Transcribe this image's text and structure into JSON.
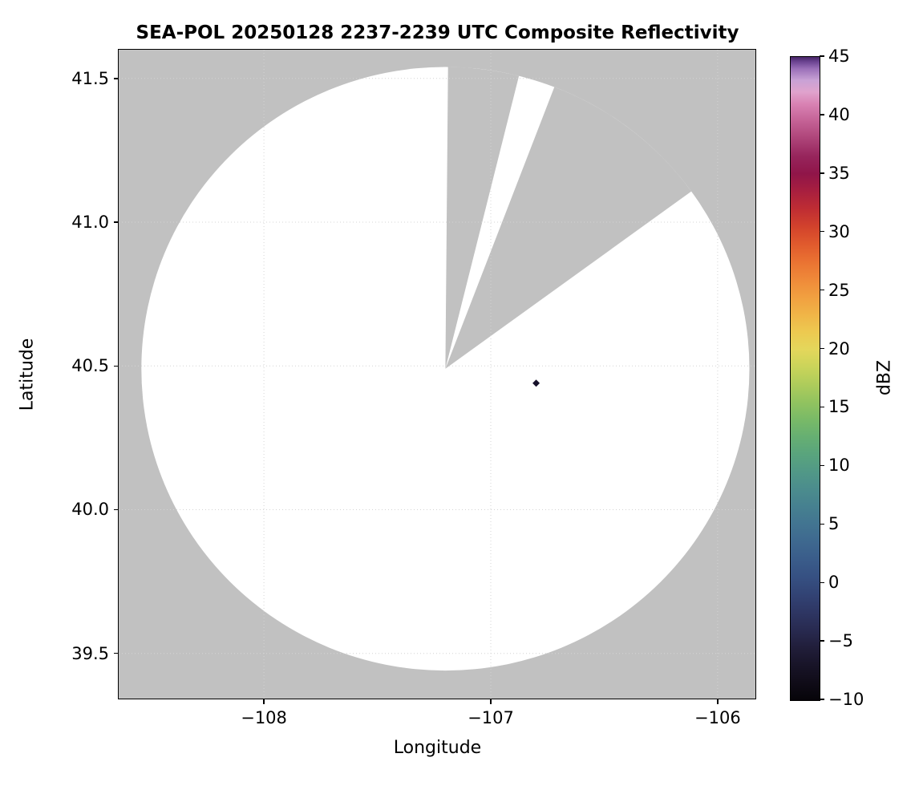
{
  "chart_data": {
    "type": "heatmap",
    "title": "SEA-POL 20250128 2237-2239 UTC Composite Reflectivity",
    "xlabel": "Longitude",
    "ylabel": "Latitude",
    "xlim": [
      -108.64,
      -105.83
    ],
    "ylim": [
      39.34,
      41.6
    ],
    "xticks": [
      -108,
      -107,
      -106
    ],
    "yticks": [
      39.5,
      40.0,
      40.5,
      41.0,
      41.5
    ],
    "xtick_labels": [
      "−108",
      "−107",
      "−106"
    ],
    "ytick_labels": [
      "39.5",
      "40.0",
      "40.5",
      "41.0",
      "41.5"
    ],
    "grid": "faint dotted gridlines at each tick",
    "no_data_color": "#c1c1c1",
    "coverage_color": "#ffffff",
    "grid_color": "#d4d4d4",
    "radar": {
      "center_lon": -107.2,
      "center_lat": 40.49,
      "radius_lon_deg": 1.34,
      "radius_lat_deg": 1.05,
      "blocked_sectors_deg_from_north": [
        [
          0.5,
          14
        ],
        [
          21,
          54
        ]
      ]
    },
    "echoes": [
      {
        "lon": -106.8,
        "lat": 40.44,
        "appearance": "small near-black diamond (extreme end of colormap)",
        "color": "#16102a"
      }
    ],
    "colorbar": {
      "label": "dBZ",
      "min": -10,
      "max": 45,
      "ticks": [
        45,
        40,
        35,
        30,
        25,
        20,
        15,
        10,
        5,
        0,
        -5,
        -10
      ],
      "tick_labels": [
        "45",
        "40",
        "35",
        "30",
        "25",
        "20",
        "15",
        "10",
        "5",
        "0",
        "−5",
        "−10"
      ],
      "stops": [
        {
          "v": -10,
          "c": "#060409"
        },
        {
          "v": -8.5,
          "c": "#100c18"
        },
        {
          "v": -7,
          "c": "#181428"
        },
        {
          "v": -5.5,
          "c": "#211e3a"
        },
        {
          "v": -4,
          "c": "#282a50"
        },
        {
          "v": -2.5,
          "c": "#2e3663"
        },
        {
          "v": -1,
          "c": "#324374"
        },
        {
          "v": 0.5,
          "c": "#365082"
        },
        {
          "v": 2,
          "c": "#3a5c8a"
        },
        {
          "v": 3.5,
          "c": "#3e688f"
        },
        {
          "v": 5,
          "c": "#427491"
        },
        {
          "v": 6.5,
          "c": "#468090"
        },
        {
          "v": 8,
          "c": "#4b8c8d"
        },
        {
          "v": 9.5,
          "c": "#519887"
        },
        {
          "v": 11,
          "c": "#59a47d"
        },
        {
          "v": 12.5,
          "c": "#66af72"
        },
        {
          "v": 14,
          "c": "#79ba67"
        },
        {
          "v": 15.5,
          "c": "#92c35f"
        },
        {
          "v": 17,
          "c": "#aecc5b"
        },
        {
          "v": 18.5,
          "c": "#cad45a"
        },
        {
          "v": 20,
          "c": "#e4d75b"
        },
        {
          "v": 21.5,
          "c": "#edc950"
        },
        {
          "v": 23,
          "c": "#f0b447"
        },
        {
          "v": 24.5,
          "c": "#f19f40"
        },
        {
          "v": 26,
          "c": "#ef8939"
        },
        {
          "v": 27.5,
          "c": "#ea7232"
        },
        {
          "v": 29,
          "c": "#e05a2d"
        },
        {
          "v": 30.5,
          "c": "#d2422c"
        },
        {
          "v": 32,
          "c": "#bf2d33"
        },
        {
          "v": 33.5,
          "c": "#a81f3f"
        },
        {
          "v": 35,
          "c": "#901549"
        },
        {
          "v": 36.5,
          "c": "#97255c"
        },
        {
          "v": 38,
          "c": "#ad4378"
        },
        {
          "v": 39.5,
          "c": "#c46195"
        },
        {
          "v": 41,
          "c": "#d983b4"
        },
        {
          "v": 42,
          "c": "#e0a3cd"
        },
        {
          "v": 43,
          "c": "#c9a2d6"
        },
        {
          "v": 44,
          "c": "#9a6fb8"
        },
        {
          "v": 44.6,
          "c": "#6b4391"
        },
        {
          "v": 45,
          "c": "#472566"
        }
      ]
    }
  }
}
